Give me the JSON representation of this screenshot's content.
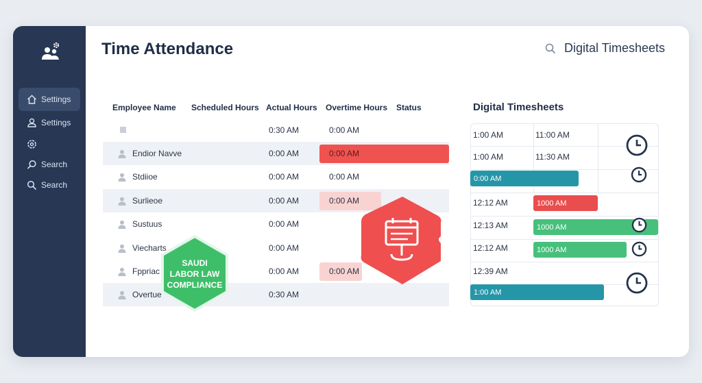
{
  "app": {
    "title": "Time Attendance",
    "header_search_label": "Digital Timesheets"
  },
  "sidebar": {
    "items": [
      {
        "label": "Settings",
        "icon": "home-icon"
      },
      {
        "label": "Settings",
        "icon": "user-icon"
      },
      {
        "label": "",
        "icon": "gear-icon"
      },
      {
        "label": "Search",
        "icon": "search-icon"
      },
      {
        "label": "Search",
        "icon": "search-icon"
      }
    ]
  },
  "table": {
    "columns": [
      "Employee Name",
      "Scheduled Hours",
      "Actual Hours",
      "Overtime Hours",
      "Status"
    ],
    "rows": [
      {
        "name": "",
        "actual": "0:30 AM",
        "overtime": "0:00 AM"
      },
      {
        "name": "Endior Navve",
        "actual": "0:00 AM",
        "overtime": "0:00 AM"
      },
      {
        "name": "Stdiioe",
        "actual": "0:00 AM",
        "overtime": "0:00 AM"
      },
      {
        "name": "Surlieoe",
        "actual": "0:00 AM",
        "overtime": "0:00 AM"
      },
      {
        "name": "Sustuus",
        "actual": "0:00 AM",
        "overtime": ""
      },
      {
        "name": "Viecharts",
        "actual": "0:00 AM",
        "overtime": ""
      },
      {
        "name": "Fppriac",
        "actual": "0:00 AM",
        "overtime": "0:00 AM"
      },
      {
        "name": "Overtue",
        "actual": "0:30 AM",
        "overtime": ""
      }
    ]
  },
  "timesheets": {
    "title": "Digital Timesheets",
    "cells": [
      "1:00 AM",
      "11:00 AM",
      "1:00 AM",
      "11:30 AM",
      "12:12 AM",
      "12:13 AM",
      "12:12 AM",
      "12:39 AM"
    ],
    "bars": [
      "0:00 AM",
      "1000 AM",
      "1000 AM",
      "1000 AM",
      "1:00 AM"
    ]
  },
  "badges": {
    "compliance": [
      "SAUDI",
      "LABOR LAW",
      "COMPLIANCE"
    ]
  },
  "colors": {
    "sidebar": "#273754",
    "accent_red": "#ef5350",
    "teal": "#2596a8",
    "green": "#46c07b"
  }
}
